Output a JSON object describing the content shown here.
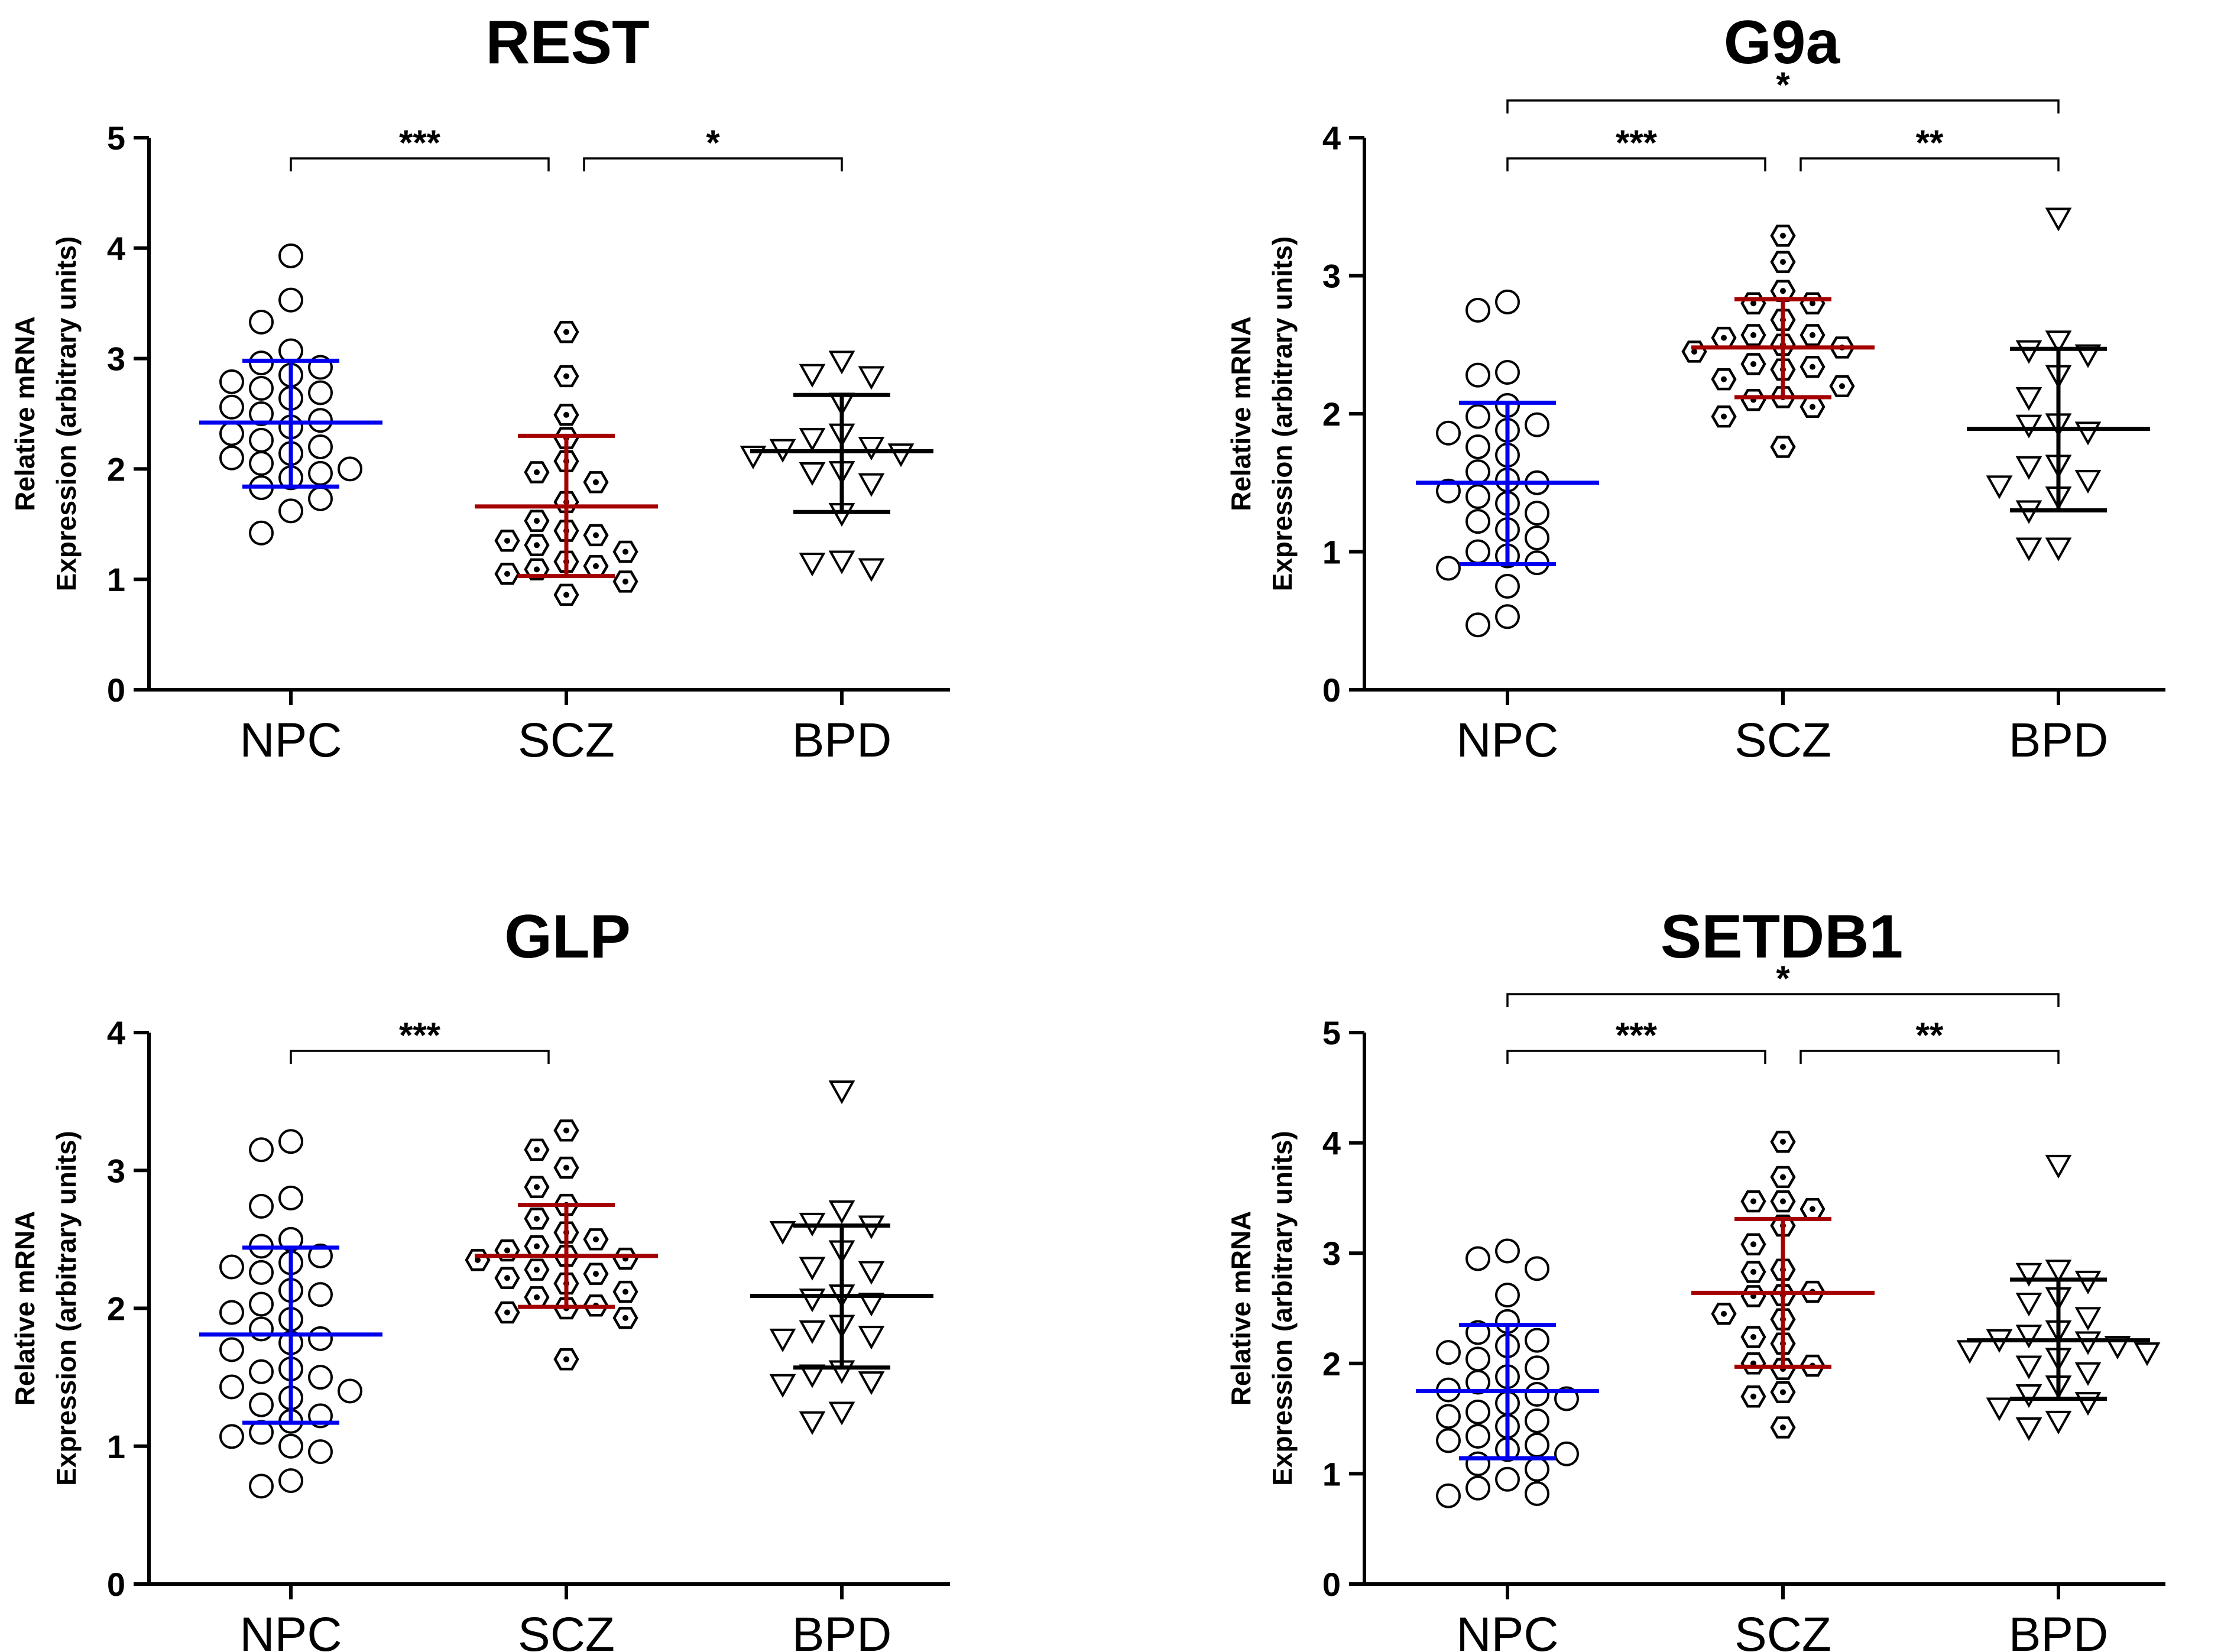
{
  "chart_data": [
    {
      "type": "scatter",
      "title": "REST",
      "ylabel_line1": "Relative mRNA",
      "ylabel_line2": "Expression (arbitrary units)",
      "categories": [
        "NPC",
        "SCZ",
        "BPD"
      ],
      "ylim": [
        0,
        5
      ],
      "yticks": [
        "0",
        "1",
        "2",
        "3",
        "4",
        "5"
      ],
      "series": [
        {
          "name": "NPC",
          "marker": "circle",
          "color": "#0000ee",
          "mean": 2.42,
          "sd_low": 1.84,
          "sd_high": 2.98,
          "values": [
            3.93,
            3.53,
            3.33,
            3.07,
            2.96,
            2.92,
            2.85,
            2.79,
            2.73,
            2.69,
            2.64,
            2.56,
            2.5,
            2.44,
            2.38,
            2.32,
            2.26,
            2.2,
            2.14,
            2.1,
            2.05,
            2.0,
            1.96,
            1.92,
            1.83,
            1.73,
            1.62,
            1.42
          ]
        },
        {
          "name": "SCZ",
          "marker": "hexagon",
          "color": "#a50000",
          "mean": 1.66,
          "sd_low": 1.03,
          "sd_high": 2.3,
          "values": [
            3.24,
            2.84,
            2.49,
            2.28,
            2.07,
            1.97,
            1.88,
            1.7,
            1.53,
            1.44,
            1.4,
            1.35,
            1.31,
            1.25,
            1.16,
            1.12,
            1.09,
            1.05,
            0.98,
            0.86
          ]
        },
        {
          "name": "BPD",
          "marker": "triangle",
          "color": "#000000",
          "mean": 2.16,
          "sd_low": 1.61,
          "sd_high": 2.67,
          "values": [
            2.98,
            2.86,
            2.84,
            2.6,
            2.32,
            2.28,
            2.2,
            2.18,
            2.14,
            2.12,
            1.98,
            1.97,
            1.87,
            1.6,
            1.17,
            1.15,
            1.1
          ]
        }
      ],
      "comparisons": [
        {
          "from": "NPC",
          "to": "SCZ",
          "label": "***",
          "level": 1
        },
        {
          "from": "SCZ",
          "to": "BPD",
          "label": "*",
          "level": 1
        }
      ]
    },
    {
      "type": "scatter",
      "title": "G9a",
      "ylabel_line1": "Relative mRNA",
      "ylabel_line2": "Expression (arbitrary units)",
      "categories": [
        "NPC",
        "SCZ",
        "BPD"
      ],
      "ylim": [
        0,
        4
      ],
      "yticks": [
        "0",
        "1",
        "2",
        "3",
        "4"
      ],
      "series": [
        {
          "name": "NPC",
          "marker": "circle",
          "color": "#0000ee",
          "mean": 1.5,
          "sd_low": 0.91,
          "sd_high": 2.08,
          "values": [
            2.81,
            2.75,
            2.3,
            2.28,
            2.06,
            1.98,
            1.92,
            1.88,
            1.86,
            1.76,
            1.7,
            1.58,
            1.52,
            1.5,
            1.44,
            1.4,
            1.35,
            1.28,
            1.22,
            1.16,
            1.1,
            1.0,
            0.97,
            0.92,
            0.88,
            0.75,
            0.53,
            0.47
          ]
        },
        {
          "name": "SCZ",
          "marker": "hexagon",
          "color": "#a50000",
          "mean": 2.48,
          "sd_low": 2.12,
          "sd_high": 2.83,
          "values": [
            3.29,
            3.1,
            2.89,
            2.8,
            2.8,
            2.68,
            2.57,
            2.57,
            2.55,
            2.5,
            2.48,
            2.45,
            2.36,
            2.34,
            2.32,
            2.25,
            2.2,
            2.12,
            2.1,
            2.05,
            1.98,
            1.76
          ]
        },
        {
          "name": "BPD",
          "marker": "triangle",
          "color": "#000000",
          "mean": 1.89,
          "sd_low": 1.3,
          "sd_high": 2.47,
          "values": [
            3.42,
            2.53,
            2.46,
            2.43,
            2.28,
            2.12,
            1.93,
            1.92,
            1.87,
            1.63,
            1.62,
            1.52,
            1.48,
            1.4,
            1.3,
            1.03,
            1.03
          ]
        }
      ],
      "comparisons": [
        {
          "from": "NPC",
          "to": "SCZ",
          "label": "***",
          "level": 1
        },
        {
          "from": "SCZ",
          "to": "BPD",
          "label": "**",
          "level": 1
        },
        {
          "from": "NPC",
          "to": "BPD",
          "label": "*",
          "level": 2
        }
      ]
    },
    {
      "type": "scatter",
      "title": "GLP",
      "ylabel_line1": "Relative mRNA",
      "ylabel_line2": "Expression (arbitrary units)",
      "categories": [
        "NPC",
        "SCZ",
        "BPD"
      ],
      "ylim": [
        0,
        4
      ],
      "yticks": [
        "0",
        "1",
        "2",
        "3",
        "4"
      ],
      "series": [
        {
          "name": "NPC",
          "marker": "circle",
          "color": "#0000ee",
          "mean": 1.81,
          "sd_low": 1.17,
          "sd_high": 2.44,
          "values": [
            3.21,
            3.15,
            2.8,
            2.74,
            2.5,
            2.45,
            2.38,
            2.33,
            2.3,
            2.26,
            2.13,
            2.1,
            2.03,
            1.97,
            1.92,
            1.85,
            1.78,
            1.75,
            1.7,
            1.56,
            1.54,
            1.5,
            1.43,
            1.4,
            1.35,
            1.3,
            1.22,
            1.18,
            1.1,
            1.07,
            1.0,
            0.96,
            0.75,
            0.71
          ]
        },
        {
          "name": "SCZ",
          "marker": "hexagon",
          "color": "#a50000",
          "mean": 2.38,
          "sd_low": 2.01,
          "sd_high": 2.75,
          "values": [
            3.29,
            3.15,
            3.02,
            2.88,
            2.75,
            2.65,
            2.55,
            2.5,
            2.45,
            2.42,
            2.38,
            2.36,
            2.35,
            2.28,
            2.25,
            2.22,
            2.18,
            2.12,
            2.08,
            2.02,
            2.0,
            1.97,
            1.93,
            1.63
          ]
        },
        {
          "name": "BPD",
          "marker": "triangle",
          "color": "#000000",
          "mean": 2.09,
          "sd_low": 1.57,
          "sd_high": 2.6,
          "values": [
            3.58,
            2.71,
            2.62,
            2.6,
            2.56,
            2.42,
            2.3,
            2.27,
            2.1,
            2.07,
            2.04,
            1.88,
            1.84,
            1.8,
            1.78,
            1.55,
            1.52,
            1.47,
            1.45,
            1.25,
            1.18
          ]
        }
      ],
      "comparisons": [
        {
          "from": "NPC",
          "to": "SCZ",
          "label": "***",
          "level": 1
        }
      ]
    },
    {
      "type": "scatter",
      "title": "SETDB1",
      "ylabel_line1": "Relative mRNA",
      "ylabel_line2": "Expression (arbitrary units)",
      "categories": [
        "NPC",
        "SCZ",
        "BPD"
      ],
      "ylim": [
        0,
        5
      ],
      "yticks": [
        "0",
        "1",
        "2",
        "3",
        "4",
        "5"
      ],
      "series": [
        {
          "name": "NPC",
          "marker": "circle",
          "color": "#0000ee",
          "mean": 1.75,
          "sd_low": 1.14,
          "sd_high": 2.35,
          "values": [
            3.02,
            2.95,
            2.86,
            2.62,
            2.38,
            2.28,
            2.21,
            2.16,
            2.1,
            2.04,
            1.96,
            1.88,
            1.83,
            1.76,
            1.72,
            1.68,
            1.64,
            1.56,
            1.52,
            1.48,
            1.43,
            1.34,
            1.3,
            1.26,
            1.22,
            1.18,
            1.09,
            1.04,
            0.95,
            0.87,
            0.82,
            0.8
          ]
        },
        {
          "name": "SCZ",
          "marker": "hexagon",
          "color": "#a50000",
          "mean": 2.64,
          "sd_low": 1.97,
          "sd_high": 3.31,
          "values": [
            4.01,
            3.69,
            3.47,
            3.47,
            3.4,
            3.25,
            3.08,
            2.85,
            2.83,
            2.65,
            2.62,
            2.61,
            2.45,
            2.4,
            2.24,
            2.18,
            2.0,
            1.98,
            1.95,
            1.74,
            1.7,
            1.42
          ]
        },
        {
          "name": "BPD",
          "marker": "triangle",
          "color": "#000000",
          "mean": 2.21,
          "sd_low": 1.68,
          "sd_high": 2.76,
          "values": [
            3.8,
            2.85,
            2.82,
            2.75,
            2.6,
            2.55,
            2.42,
            2.3,
            2.26,
            2.22,
            2.2,
            2.16,
            2.12,
            2.1,
            2.05,
            1.98,
            1.92,
            1.8,
            1.72,
            1.65,
            1.6,
            1.48,
            1.42
          ]
        }
      ],
      "comparisons": [
        {
          "from": "NPC",
          "to": "SCZ",
          "label": "***",
          "level": 1
        },
        {
          "from": "SCZ",
          "to": "BPD",
          "label": "**",
          "level": 1
        },
        {
          "from": "NPC",
          "to": "BPD",
          "label": "*",
          "level": 2
        }
      ]
    }
  ]
}
